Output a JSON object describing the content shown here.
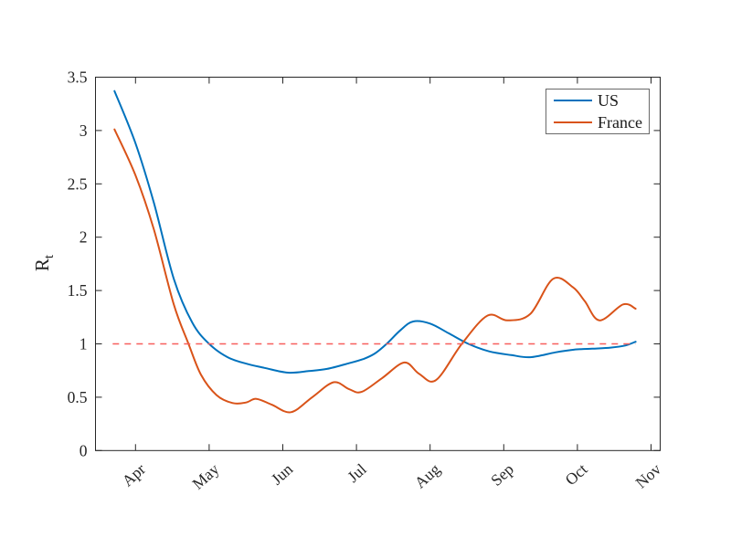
{
  "chart_data": {
    "type": "line",
    "title": "",
    "ylabel": "R_t",
    "ylabel_main": "R",
    "ylabel_sub": "t",
    "xlabel": "",
    "x_unit": "months_from_Apr_tick",
    "x_tick_labels": [
      "Apr",
      "May",
      "Jun",
      "Jul",
      "Aug",
      "Sep",
      "Oct",
      "Nov"
    ],
    "x_ticks_months": [
      0,
      1,
      2,
      3,
      4,
      5,
      6,
      7
    ],
    "y_tick_labels": [
      "0",
      "0.5",
      "1",
      "1.5",
      "2",
      "2.5",
      "3",
      "3.5"
    ],
    "y_ticks": [
      0,
      0.5,
      1,
      1.5,
      2,
      2.5,
      3,
      3.5
    ],
    "ylim": [
      0,
      3.5
    ],
    "xlim_months": [
      -0.55,
      7.13
    ],
    "grid": false,
    "legend": {
      "position": "top-right",
      "entries": [
        "US",
        "France"
      ]
    },
    "reference_line": {
      "y": 1.0,
      "style": "dashed",
      "color": "#f75f5c",
      "x_start_months": -0.31,
      "x_end_months": 6.79
    },
    "axis_color": "#262626",
    "series": [
      {
        "name": "US",
        "color": "#0072BD",
        "line_width": 2,
        "points": [
          [
            -0.285,
            3.37
          ],
          [
            0.0,
            2.88
          ],
          [
            0.25,
            2.32
          ],
          [
            0.52,
            1.61
          ],
          [
            0.77,
            1.2
          ],
          [
            1.0,
            1.0
          ],
          [
            1.25,
            0.875
          ],
          [
            1.5,
            0.815
          ],
          [
            1.75,
            0.775
          ],
          [
            2.07,
            0.73
          ],
          [
            2.35,
            0.745
          ],
          [
            2.6,
            0.765
          ],
          [
            2.88,
            0.815
          ],
          [
            3.1,
            0.86
          ],
          [
            3.25,
            0.91
          ],
          [
            3.41,
            1.0
          ],
          [
            3.6,
            1.13
          ],
          [
            3.77,
            1.21
          ],
          [
            4.0,
            1.19
          ],
          [
            4.25,
            1.1
          ],
          [
            4.52,
            1.0
          ],
          [
            4.8,
            0.93
          ],
          [
            5.1,
            0.895
          ],
          [
            5.36,
            0.875
          ],
          [
            5.7,
            0.92
          ],
          [
            5.95,
            0.945
          ],
          [
            6.2,
            0.955
          ],
          [
            6.45,
            0.965
          ],
          [
            6.65,
            0.985
          ],
          [
            6.79,
            1.02
          ]
        ]
      },
      {
        "name": "France",
        "color": "#D95319",
        "line_width": 2,
        "points": [
          [
            -0.285,
            3.01
          ],
          [
            0.0,
            2.58
          ],
          [
            0.25,
            2.07
          ],
          [
            0.52,
            1.37
          ],
          [
            0.72,
            1.0
          ],
          [
            0.89,
            0.71
          ],
          [
            1.1,
            0.52
          ],
          [
            1.32,
            0.445
          ],
          [
            1.5,
            0.45
          ],
          [
            1.64,
            0.485
          ],
          [
            1.85,
            0.43
          ],
          [
            2.11,
            0.36
          ],
          [
            2.4,
            0.5
          ],
          [
            2.69,
            0.64
          ],
          [
            2.9,
            0.575
          ],
          [
            3.07,
            0.55
          ],
          [
            3.35,
            0.68
          ],
          [
            3.65,
            0.825
          ],
          [
            3.85,
            0.72
          ],
          [
            4.08,
            0.66
          ],
          [
            4.43,
            1.0
          ],
          [
            4.78,
            1.265
          ],
          [
            5.05,
            1.22
          ],
          [
            5.36,
            1.28
          ],
          [
            5.67,
            1.61
          ],
          [
            5.94,
            1.53
          ],
          [
            6.1,
            1.4
          ],
          [
            6.3,
            1.22
          ],
          [
            6.62,
            1.37
          ],
          [
            6.79,
            1.33
          ]
        ]
      }
    ]
  }
}
